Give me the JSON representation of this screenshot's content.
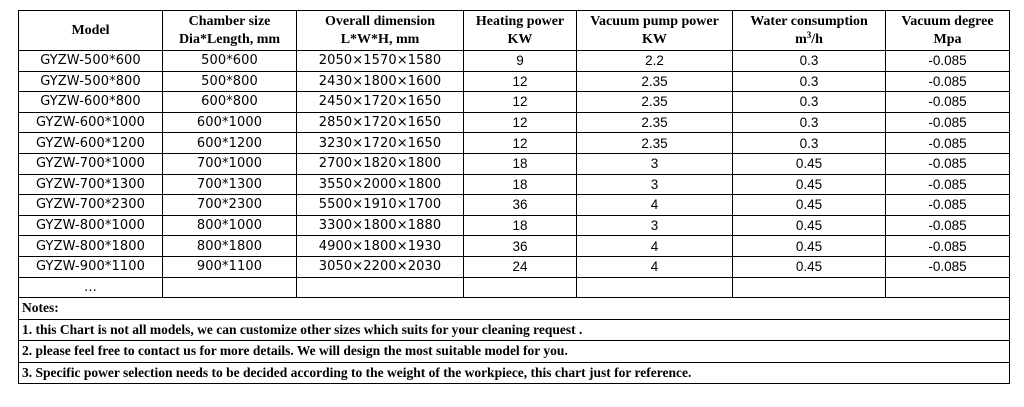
{
  "headers": [
    {
      "line1": "Model",
      "line2": ""
    },
    {
      "line1": "Chamber size",
      "line2": "Dia*Length, mm"
    },
    {
      "line1": "Overall dimension",
      "line2": "L*W*H, mm"
    },
    {
      "line1": "Heating power",
      "line2": "KW"
    },
    {
      "line1": "Vacuum pump power",
      "line2": "KW"
    },
    {
      "line1": "Water consumption",
      "line2_prefix": "m",
      "line2_sup": "3",
      "line2_suffix": "/h"
    },
    {
      "line1": "Vacuum degree",
      "line2": "Mpa"
    }
  ],
  "rows": [
    [
      "GYZW-500*600",
      "500*600",
      "2050×1570×1580",
      "9",
      "2.2",
      "0.3",
      "-0.085"
    ],
    [
      "GYZW-500*800",
      "500*800",
      "2430×1800×1600",
      "12",
      "2.35",
      "0.3",
      "-0.085"
    ],
    [
      "GYZW-600*800",
      "600*800",
      "2450×1720×1650",
      "12",
      "2.35",
      "0.3",
      "-0.085"
    ],
    [
      "GYZW-600*1000",
      "600*1000",
      "2850×1720×1650",
      "12",
      "2.35",
      "0.3",
      "-0.085"
    ],
    [
      "GYZW-600*1200",
      "600*1200",
      "3230×1720×1650",
      "12",
      "2.35",
      "0.3",
      "-0.085"
    ],
    [
      "GYZW-700*1000",
      "700*1000",
      "2700×1820×1800",
      "18",
      "3",
      "0.45",
      "-0.085"
    ],
    [
      "GYZW-700*1300",
      "700*1300",
      "3550×2000×1800",
      "18",
      "3",
      "0.45",
      "-0.085"
    ],
    [
      "GYZW-700*2300",
      "700*2300",
      "5500×1910×1700",
      "36",
      "4",
      "0.45",
      "-0.085"
    ],
    [
      "GYZW-800*1000",
      "800*1000",
      "3300×1800×1880",
      "18",
      "3",
      "0.45",
      "-0.085"
    ],
    [
      "GYZW-800*1800",
      "800*1800",
      "4900×1800×1930",
      "36",
      "4",
      "0.45",
      "-0.085"
    ],
    [
      "GYZW-900*1100",
      "900*1100",
      "3050×2200×2030",
      "24",
      "4",
      "0.45",
      "-0.085"
    ]
  ],
  "ellipsis_row": "...",
  "notes": [
    "Notes:",
    "1. this Chart is not all models, we can customize other sizes which suits for your cleaning request .",
    "2. please feel free to contact us for more details. We will design the most suitable model for you.",
    "3. Specific power selection needs to be decided according to the weight of the workpiece, this chart just for reference."
  ]
}
